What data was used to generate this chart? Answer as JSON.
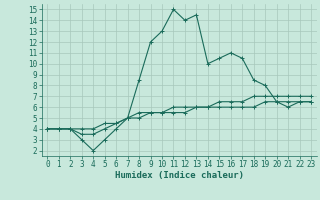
{
  "xlabel": "Humidex (Indice chaleur)",
  "xlim": [
    -0.5,
    23.5
  ],
  "ylim": [
    1.5,
    15.5
  ],
  "xticks": [
    0,
    1,
    2,
    3,
    4,
    5,
    6,
    7,
    8,
    9,
    10,
    11,
    12,
    13,
    14,
    15,
    16,
    17,
    18,
    19,
    20,
    21,
    22,
    23
  ],
  "yticks": [
    2,
    3,
    4,
    5,
    6,
    7,
    8,
    9,
    10,
    11,
    12,
    13,
    14,
    15
  ],
  "bg_color": "#c8e8dc",
  "grid_color": "#a8c8bc",
  "line_color": "#1a6b5a",
  "series1_x": [
    0,
    1,
    2,
    3,
    4,
    5,
    6,
    7,
    8,
    9,
    10,
    11,
    12,
    13,
    14,
    15,
    16,
    17,
    18,
    19,
    20,
    21,
    22,
    23
  ],
  "series1_y": [
    4,
    4,
    4,
    3,
    2,
    3,
    4,
    5,
    8.5,
    12,
    13,
    15,
    14,
    14.5,
    10,
    10.5,
    11,
    10.5,
    8.5,
    8,
    6.5,
    6,
    6.5,
    6.5
  ],
  "series2_x": [
    0,
    1,
    2,
    3,
    4,
    5,
    6,
    7,
    8,
    9,
    10,
    11,
    12,
    13,
    14,
    15,
    16,
    17,
    18,
    19,
    20,
    21,
    22,
    23
  ],
  "series2_y": [
    4,
    4,
    4,
    3.5,
    3.5,
    4,
    4.5,
    5,
    5.5,
    5.5,
    5.5,
    6,
    6,
    6,
    6,
    6.5,
    6.5,
    6.5,
    7,
    7,
    7,
    7,
    7,
    7
  ],
  "series3_x": [
    0,
    1,
    2,
    3,
    4,
    5,
    6,
    7,
    8,
    9,
    10,
    11,
    12,
    13,
    14,
    15,
    16,
    17,
    18,
    19,
    20,
    21,
    22,
    23
  ],
  "series3_y": [
    4,
    4,
    4,
    4,
    4,
    4.5,
    4.5,
    5,
    5,
    5.5,
    5.5,
    5.5,
    5.5,
    6,
    6,
    6,
    6,
    6,
    6,
    6.5,
    6.5,
    6.5,
    6.5,
    6.5
  ],
  "marker": "+",
  "marker_size": 3,
  "linewidth": 0.8,
  "tick_fontsize": 5.5,
  "xlabel_fontsize": 6.5
}
